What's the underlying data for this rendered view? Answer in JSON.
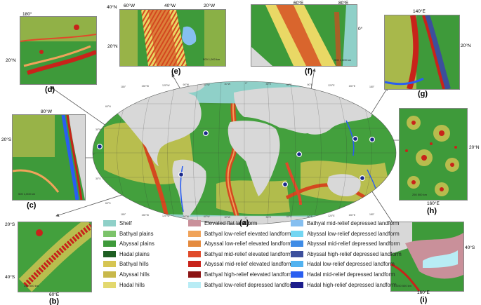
{
  "main_label": "(a)",
  "insets": [
    {
      "id": "d",
      "label": "(d)",
      "coords": [
        {
          "text": "180°"
        },
        {
          "text": "20°N"
        }
      ]
    },
    {
      "id": "e",
      "label": "(e)",
      "coords": [
        {
          "text": "60°W"
        },
        {
          "text": "40°W"
        },
        {
          "text": "20°W"
        },
        {
          "text": "40°N"
        },
        {
          "text": "20°N"
        }
      ]
    },
    {
      "id": "f",
      "label": "(f)",
      "coords": [
        {
          "text": "60°E"
        },
        {
          "text": "80°E"
        },
        {
          "text": "0°"
        }
      ]
    },
    {
      "id": "g",
      "label": "(g)",
      "coords": [
        {
          "text": "140°E"
        },
        {
          "text": "20°N"
        }
      ]
    },
    {
      "id": "c",
      "label": "(c)",
      "coords": [
        {
          "text": "80°W"
        },
        {
          "text": "20°S"
        }
      ]
    },
    {
      "id": "h",
      "label": "(h)",
      "coords": [
        {
          "text": "20°N"
        },
        {
          "text": "160°E"
        }
      ]
    },
    {
      "id": "b",
      "label": "(b)",
      "coords": [
        {
          "text": "20°S"
        },
        {
          "text": "40°S"
        },
        {
          "text": "60°E"
        }
      ]
    },
    {
      "id": "i",
      "label": "(i)",
      "coords": [
        {
          "text": "40°S"
        },
        {
          "text": "160°E"
        }
      ]
    }
  ],
  "legend": [
    {
      "label": "Shelf",
      "color": "#8fd0c8"
    },
    {
      "label": "Bathyal plains",
      "color": "#7cc36a"
    },
    {
      "label": "Abyssal plains",
      "color": "#3e9a3a"
    },
    {
      "label": "Hadal plains",
      "color": "#1e5e22"
    },
    {
      "label": "Bathyal hills",
      "color": "#d6c552"
    },
    {
      "label": "Abyssal hills",
      "color": "#c8b84a"
    },
    {
      "label": "Hadal hills",
      "color": "#e3d86e"
    },
    {
      "label": "Elevated flat landform",
      "color": "#c9909a"
    },
    {
      "label": "Bathyal low-relief elevated landform",
      "color": "#f0a35a"
    },
    {
      "label": "Abyssal low-relief elevated landform",
      "color": "#e48a3e"
    },
    {
      "label": "Bathyal mid-relief elevated landform",
      "color": "#e04a2a"
    },
    {
      "label": "Abyssal mid-relief elevated landform",
      "color": "#c8231a"
    },
    {
      "label": "Bathyal high-relief elevated landform",
      "color": "#8c1414"
    },
    {
      "label": "Bathyal low-relief depressed landform",
      "color": "#b8ecf5"
    },
    {
      "label": "Bathyal mid-relief depressed landform",
      "color": "#86bff0"
    },
    {
      "label": "Abyssal low-relief depressed landform",
      "color": "#73d6f2"
    },
    {
      "label": "Abyssal mid-relief depressed landform",
      "color": "#3f8ce6"
    },
    {
      "label": "Abyssal high-relief depressed landform",
      "color": "#3c4f9c"
    },
    {
      "label": "Hadal low-relief depressed landform",
      "color": "#52b2f0"
    },
    {
      "label": "Hadal mid-relief depressed landform",
      "color": "#2a5ef0"
    },
    {
      "label": "Hadal high-relief depressed landform",
      "color": "#1c1d8c"
    }
  ],
  "graticule_top": [
    {
      "t": "180°"
    },
    {
      "t": "150°W"
    },
    {
      "t": "120°W"
    },
    {
      "t": "90°W"
    },
    {
      "t": "60°W"
    },
    {
      "t": "30°W"
    },
    {
      "t": "0°"
    },
    {
      "t": "30°E"
    },
    {
      "t": "60°E"
    },
    {
      "t": "90°E"
    },
    {
      "t": "120°E"
    },
    {
      "t": "150°E"
    },
    {
      "t": "180°"
    }
  ],
  "graticule_bottom": [
    {
      "t": "180°"
    },
    {
      "t": "150°W"
    },
    {
      "t": "120°W"
    },
    {
      "t": "90°W"
    },
    {
      "t": "60°W"
    },
    {
      "t": "30°W"
    },
    {
      "t": "0°"
    },
    {
      "t": "30°E"
    },
    {
      "t": "60°E"
    },
    {
      "t": "90°E"
    },
    {
      "t": "120°E"
    },
    {
      "t": "150°E"
    },
    {
      "t": "180°"
    }
  ],
  "graticule_lat": [
    {
      "t": "60°N"
    },
    {
      "t": "30°N"
    },
    {
      "t": "0°"
    },
    {
      "t": "30°S"
    },
    {
      "t": "60°S"
    }
  ],
  "scale_labels": [
    {
      "t": "500 1,000 km"
    },
    {
      "t": "500 1,000 km"
    },
    {
      "t": "500 1,000 km"
    },
    {
      "t": "250 500 km"
    },
    {
      "t": "250 500 km"
    },
    {
      "t": "250 500 km"
    },
    {
      "t": "100 200 km"
    },
    {
      "t": "500 1,000 km"
    }
  ]
}
